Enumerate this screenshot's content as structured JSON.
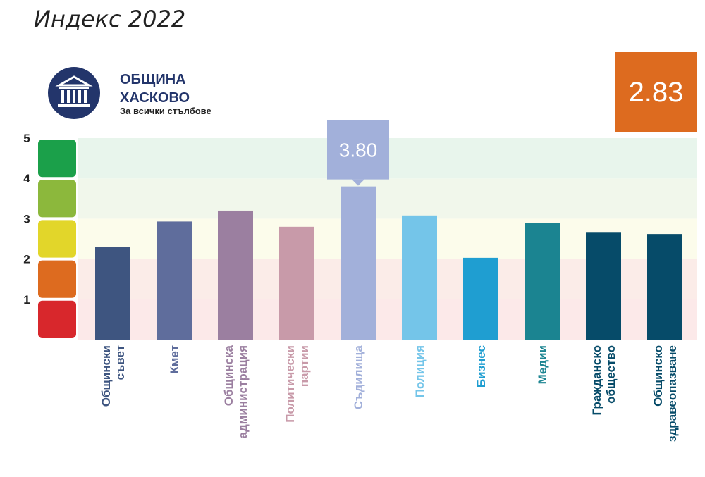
{
  "page": {
    "title": "Индекс 2022"
  },
  "municipality": {
    "name": "ОБЩИНА\nХАСКОВО",
    "subtitle": "За всички стълбове",
    "icon": "institution-building-icon",
    "icon_color": "#23356b"
  },
  "overall_score": {
    "value": "2.83",
    "color": "#dd6b1f"
  },
  "chart_data": {
    "type": "bar",
    "categories": [
      "Общински съвет",
      "Кмет",
      "Общинска администрация",
      "Политически партии",
      "Съдилища",
      "Полиция",
      "Бизнес",
      "Медии",
      "Гражданско общество",
      "Общинско здравеопазване"
    ],
    "label_lines": [
      [
        "Общински",
        "съвет"
      ],
      [
        "Кмет"
      ],
      [
        "Общинска",
        "администрация"
      ],
      [
        "Политически",
        "партии"
      ],
      [
        "Съдилища"
      ],
      [
        "Полиция"
      ],
      [
        "Бизнес"
      ],
      [
        "Медии"
      ],
      [
        "Гражданско",
        "общество"
      ],
      [
        "Общинско",
        "здравеопазване"
      ]
    ],
    "values": [
      2.3,
      2.93,
      3.2,
      2.8,
      3.8,
      3.08,
      2.03,
      2.9,
      2.67,
      2.62
    ],
    "colors": [
      "#3e5580",
      "#5f6d9c",
      "#9b7fa0",
      "#c89aa9",
      "#a2b0da",
      "#74c5e9",
      "#1f9ed1",
      "#1b8491",
      "#064b69",
      "#064b69"
    ],
    "label_colors": [
      "#3e5580",
      "#5f6d9c",
      "#9b7fa0",
      "#c89aa9",
      "#a2b0da",
      "#74c5e9",
      "#1f9ed1",
      "#1b8491",
      "#064b69",
      "#064b69"
    ],
    "highlight": {
      "index": 4,
      "label": "3.80",
      "color": "#a2b0da"
    },
    "ylim": [
      0,
      5
    ],
    "yticks": [
      "1",
      "2",
      "3",
      "4",
      "5"
    ],
    "bands": [
      {
        "from": 0,
        "to": 1,
        "color": "#d8272c",
        "bg": "#fce9e9"
      },
      {
        "from": 1,
        "to": 2,
        "color": "#dd6b1f",
        "bg": "#fbece8"
      },
      {
        "from": 2,
        "to": 3,
        "color": "#e2d62a",
        "bg": "#fcfceb"
      },
      {
        "from": 3,
        "to": 4,
        "color": "#8cb83c",
        "bg": "#f1f7eb"
      },
      {
        "from": 4,
        "to": 5,
        "color": "#1ba04a",
        "bg": "#e8f5ec"
      }
    ]
  }
}
